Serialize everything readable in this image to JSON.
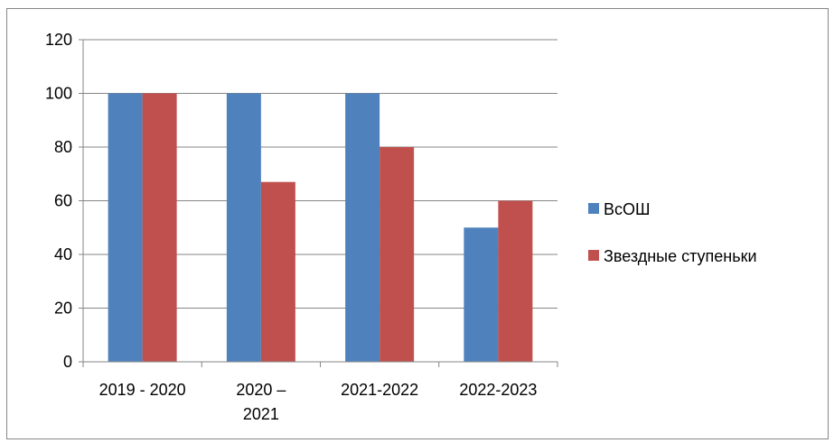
{
  "chart_data": {
    "type": "bar",
    "title": "",
    "xlabel": "",
    "ylabel": "",
    "categories": [
      [
        "2019 - 2020"
      ],
      [
        "2020 –",
        "2021"
      ],
      [
        "2021-2022"
      ],
      [
        "2022-2023"
      ]
    ],
    "series": [
      {
        "name": "ВсОШ",
        "color": "#4f81bd",
        "values": [
          100,
          100,
          100,
          50
        ]
      },
      {
        "name": "Звездные ступеньки",
        "color": "#c0504d",
        "values": [
          100,
          67,
          80,
          60
        ]
      }
    ],
    "ylim": [
      0,
      120
    ],
    "yticks": [
      0,
      20,
      40,
      60,
      80,
      100,
      120
    ],
    "grid": true,
    "legend_position": "right"
  }
}
